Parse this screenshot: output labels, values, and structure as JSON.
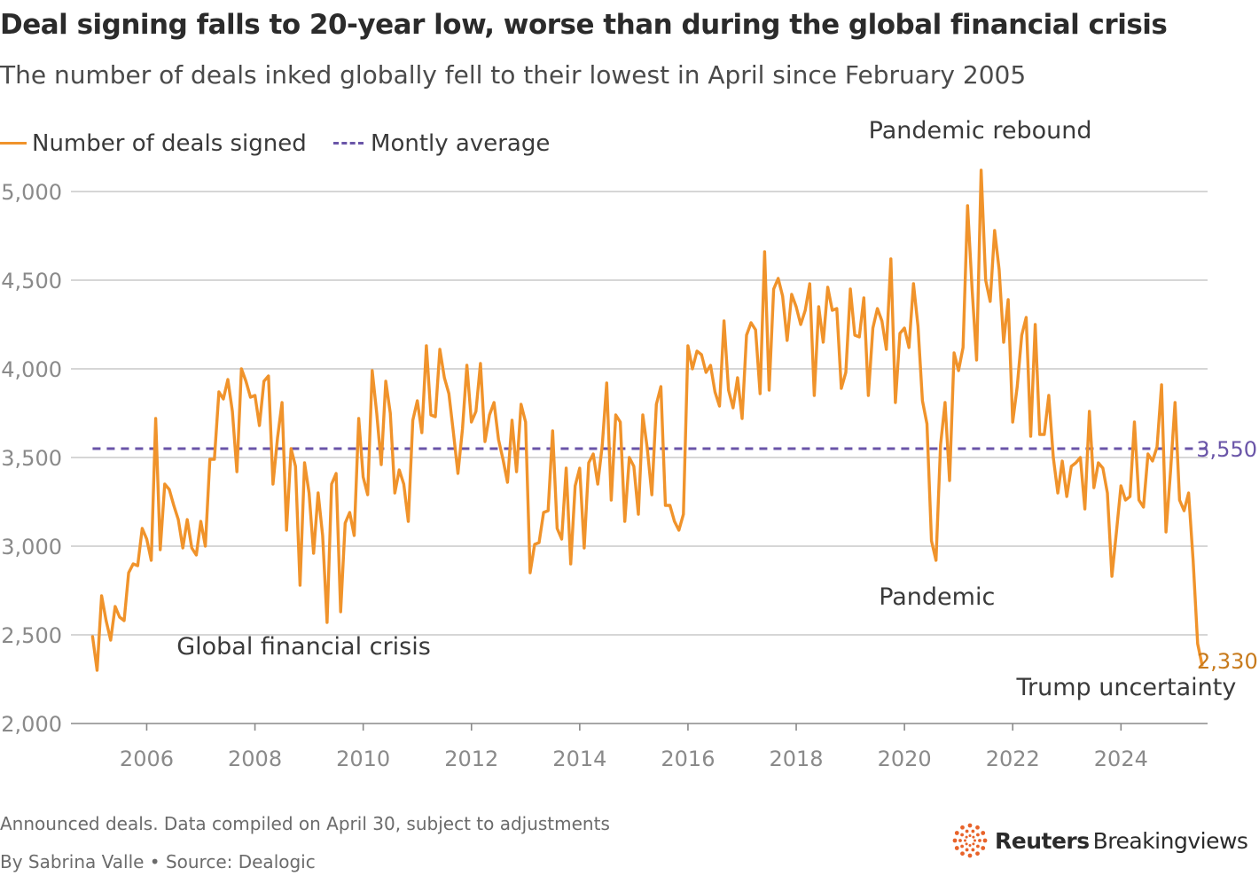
{
  "header": {
    "title": "Deal signing falls to 20-year low, worse than during the global financial crisis",
    "subtitle": "The number of deals inked globally fell to their lowest in April since February 2005"
  },
  "legend": {
    "series_label": "Number of deals signed",
    "average_label": "Montly average"
  },
  "colors": {
    "series": "#f0932b",
    "average": "#6a55a8",
    "grid": "#c8c8c8",
    "axis_text": "#8a8a8a",
    "last_value": "#c77a1c"
  },
  "footer": {
    "note": "Announced deals. Data compiled on April 30, subject to adjustments",
    "byline": "By Sabrina Valle • Source: Dealogic",
    "logo_brand": "Reuters",
    "logo_product": "Breakingviews",
    "logo_icon": "reuters-dot-ring-icon"
  },
  "chart_data": {
    "type": "line",
    "title": "Deal signing falls to 20-year low, worse than during the global financial crisis",
    "xlabel": "",
    "ylabel": "",
    "ylim": [
      2000,
      5100
    ],
    "xlim": [
      2004.6,
      2025.6
    ],
    "y_ticks": [
      2000,
      2500,
      3000,
      3500,
      4000,
      4500,
      5000
    ],
    "y_tick_labels": [
      "2,000",
      "2,500",
      "3,000",
      "3,500",
      "4,000",
      "4,500",
      "5,000"
    ],
    "x_ticks": [
      2006,
      2008,
      2010,
      2012,
      2014,
      2016,
      2018,
      2020,
      2022,
      2024
    ],
    "x_tick_labels": [
      "2006",
      "2008",
      "2010",
      "2012",
      "2014",
      "2016",
      "2018",
      "2020",
      "2022",
      "2024"
    ],
    "grid": true,
    "legend_position": "top-left",
    "average": {
      "name": "Montly average",
      "value": 3550,
      "label": "3,550"
    },
    "last_point": {
      "label": "2,330",
      "value": 2330
    },
    "annotations": [
      {
        "text": "Global financial crisis",
        "x": 2008.9,
        "y": 2390
      },
      {
        "text": "Pandemic rebound",
        "x": 2021.4,
        "y": 5300
      },
      {
        "text": "Pandemic",
        "x": 2020.6,
        "y": 2670
      },
      {
        "text": "Trump uncertainty",
        "x": 2024.1,
        "y": 2160
      }
    ],
    "series": [
      {
        "name": "Number of deals signed",
        "x_start": 2005.0,
        "x_step": 0.08333,
        "values": [
          2490,
          2300,
          2720,
          2580,
          2470,
          2660,
          2600,
          2580,
          2850,
          2900,
          2890,
          3100,
          3040,
          2920,
          3720,
          2980,
          3350,
          3320,
          3230,
          3150,
          2990,
          3150,
          2990,
          2950,
          3140,
          3000,
          3490,
          3490,
          3870,
          3830,
          3940,
          3760,
          3420,
          4000,
          3930,
          3840,
          3850,
          3680,
          3930,
          3960,
          3350,
          3610,
          3810,
          3090,
          3550,
          3450,
          2780,
          3470,
          3300,
          2960,
          3300,
          3060,
          2570,
          3350,
          3410,
          2630,
          3130,
          3190,
          3060,
          3720,
          3390,
          3290,
          3990,
          3750,
          3460,
          3930,
          3750,
          3300,
          3430,
          3350,
          3140,
          3710,
          3820,
          3640,
          4130,
          3740,
          3730,
          4110,
          3950,
          3860,
          3640,
          3410,
          3660,
          4020,
          3700,
          3760,
          4030,
          3590,
          3740,
          3810,
          3600,
          3490,
          3360,
          3710,
          3420,
          3800,
          3700,
          2850,
          3010,
          3020,
          3190,
          3200,
          3650,
          3100,
          3040,
          3440,
          2900,
          3340,
          3440,
          2990,
          3470,
          3520,
          3350,
          3570,
          3920,
          3260,
          3740,
          3700,
          3140,
          3500,
          3450,
          3180,
          3740,
          3550,
          3290,
          3800,
          3900,
          3230,
          3230,
          3140,
          3090,
          3180,
          4130,
          4000,
          4100,
          4080,
          3980,
          4020,
          3870,
          3790,
          4270,
          3880,
          3780,
          3950,
          3720,
          4190,
          4260,
          4220,
          3860,
          4660,
          3880,
          4450,
          4510,
          4410,
          4160,
          4420,
          4350,
          4250,
          4330,
          4480,
          3850,
          4350,
          4150,
          4460,
          4330,
          4340,
          3890,
          3980,
          4450,
          4190,
          4180,
          4400,
          3850,
          4230,
          4340,
          4270,
          4110,
          4620,
          3810,
          4200,
          4230,
          4120,
          4480,
          4240,
          3820,
          3690,
          3030,
          2920,
          3570,
          3810,
          3370,
          4090,
          3990,
          4120,
          4920,
          4450,
          4050,
          5120,
          4500,
          4380,
          4780,
          4560,
          4150,
          4390,
          3700,
          3900,
          4190,
          4290,
          3620,
          4250,
          3630,
          3630,
          3850,
          3500,
          3300,
          3480,
          3280,
          3450,
          3470,
          3500,
          3210,
          3760,
          3330,
          3470,
          3440,
          3300,
          2830,
          3080,
          3340,
          3260,
          3280,
          3700,
          3260,
          3220,
          3520,
          3480,
          3560,
          3910,
          3080,
          3420,
          3810,
          3260,
          3200,
          3300,
          2920,
          2450,
          2330
        ]
      }
    ]
  }
}
